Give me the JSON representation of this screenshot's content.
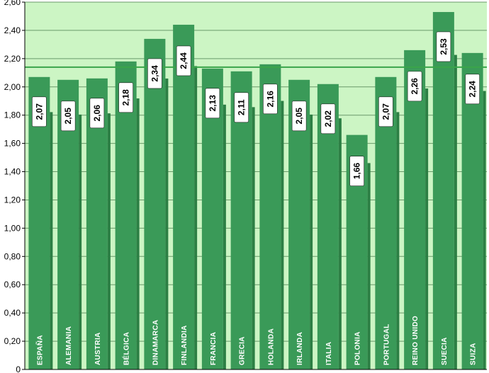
{
  "chart_data": {
    "type": "bar",
    "categories": [
      "ESPAÑA",
      "ALEMANIA",
      "AUSTRIA",
      "BÉLGICA",
      "DINAMARCA",
      "FINLANDIA",
      "FRANCIA",
      "GRECIA",
      "HOLANDA",
      "IRLANDA",
      "ITALIA",
      "POLONIA",
      "PORTUGAL",
      "REINO UNIDO",
      "SUECIA",
      "SUIZA"
    ],
    "values": [
      2.07,
      2.05,
      2.06,
      2.18,
      2.34,
      2.44,
      2.13,
      2.11,
      2.16,
      2.05,
      2.02,
      1.66,
      2.07,
      2.26,
      2.53,
      2.24
    ],
    "value_labels": [
      "2,07",
      "2,05",
      "2,06",
      "2,18",
      "2,34",
      "2,44",
      "2,13",
      "2,11",
      "2,16",
      "2,05",
      "2,02",
      "1,66",
      "2,07",
      "2,26",
      "2,53",
      "2,24"
    ],
    "yticks": [
      0,
      0.2,
      0.4,
      0.6,
      0.8,
      1.0,
      1.2,
      1.4,
      1.6,
      1.8,
      2.0,
      2.2,
      2.4,
      2.6
    ],
    "ytick_labels": [
      "0",
      "0,20",
      "0,40",
      "0,60",
      "0,80",
      "1,00",
      "1,20",
      "1,40",
      "1,60",
      "1,80",
      "2,00",
      "2,20",
      "2,40",
      "2,60"
    ],
    "ylim": [
      0,
      2.6
    ],
    "reference_line": 2.14,
    "title": "",
    "xlabel": "",
    "ylabel": "",
    "grid": true,
    "legend": "none",
    "colors": {
      "plot_background": "#ccf5c4",
      "bar": "#3a9a58",
      "bar_dark": "#2c7f44",
      "grid": "#6a9a6a",
      "reference_line": "#3aa54a",
      "label_box": "#ffffff"
    }
  }
}
